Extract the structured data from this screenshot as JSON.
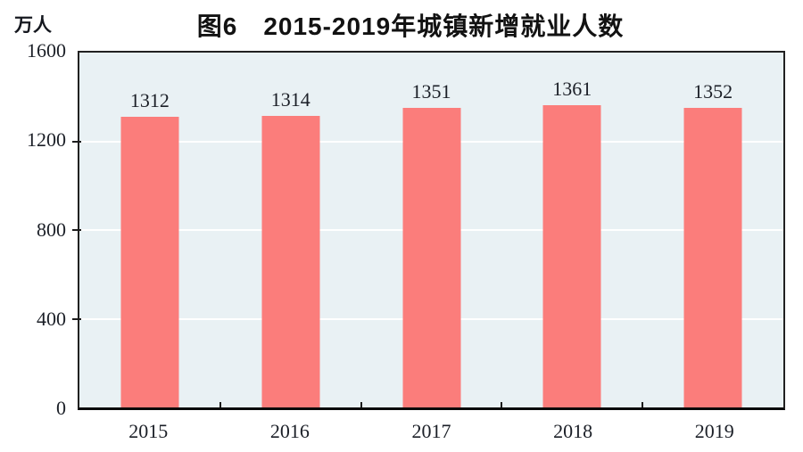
{
  "chart_data": {
    "type": "bar",
    "title": "图6　2015-2019年城镇新增就业人数",
    "unit_label": "万人",
    "categories": [
      "2015",
      "2016",
      "2017",
      "2018",
      "2019"
    ],
    "values": [
      1312,
      1314,
      1351,
      1361,
      1352
    ],
    "ylim": [
      0,
      1600
    ],
    "yticks": [
      0,
      400,
      800,
      1200,
      1600
    ],
    "grid": true,
    "legend": "none",
    "colors": {
      "bar_fill": "#FB7D7B",
      "plot_background": "#E9F1F4",
      "gridline": "#FFFFFF",
      "axis_border": "#212121",
      "text": "#1B1F27"
    }
  }
}
